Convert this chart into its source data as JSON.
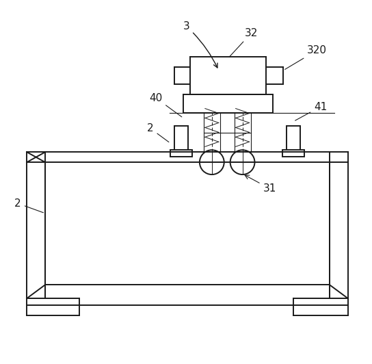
{
  "bg_color": "#ffffff",
  "line_color": "#1a1a1a",
  "lw_main": 1.4,
  "lw_thin": 0.8,
  "fontsize": 11
}
